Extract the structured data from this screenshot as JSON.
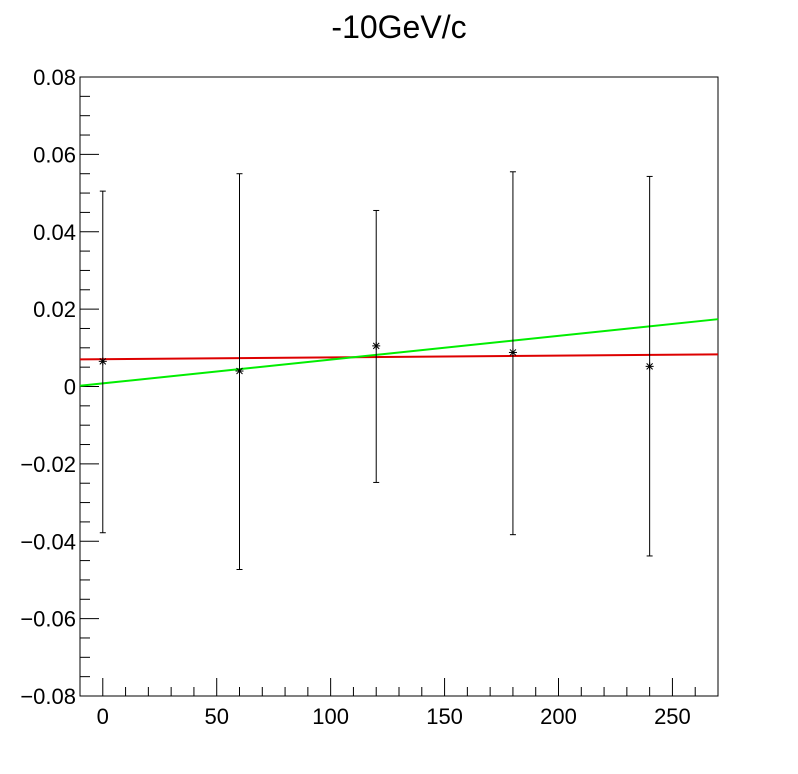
{
  "chart_data": {
    "type": "scatter",
    "title": "-10GeV/c",
    "xlabel": "",
    "ylabel": "",
    "xlim": [
      -10,
      270
    ],
    "ylim": [
      -0.08,
      0.08
    ],
    "x_ticks": [
      0,
      50,
      100,
      150,
      200,
      250
    ],
    "x_tick_labels": [
      "0",
      "50",
      "100",
      "150",
      "200",
      "250"
    ],
    "y_ticks": [
      -0.08,
      -0.06,
      -0.04,
      -0.02,
      0,
      0.02,
      0.04,
      0.06,
      0.08
    ],
    "y_tick_labels": [
      "−0.08",
      "−0.06",
      "−0.04",
      "−0.02",
      "0",
      "0.02",
      "0.04",
      "0.06",
      "0.08"
    ],
    "grid": false,
    "points": [
      {
        "x": 0,
        "y": 0.0065,
        "err_low": -0.0378,
        "err_high": 0.0505
      },
      {
        "x": 60,
        "y": 0.004,
        "err_low": -0.0473,
        "err_high": 0.055
      },
      {
        "x": 120,
        "y": 0.0105,
        "err_low": -0.0248,
        "err_high": 0.0455
      },
      {
        "x": 180,
        "y": 0.0088,
        "err_low": -0.0383,
        "err_high": 0.0555
      },
      {
        "x": 240,
        "y": 0.0052,
        "err_low": -0.0438,
        "err_high": 0.0543
      }
    ],
    "fits": [
      {
        "color": "#dd0000",
        "x": [
          -10,
          270
        ],
        "y": [
          0.007,
          0.0083
        ]
      },
      {
        "color": "#00ee00",
        "x": [
          -10,
          270
        ],
        "y": [
          0.0002,
          0.0174
        ]
      }
    ]
  }
}
